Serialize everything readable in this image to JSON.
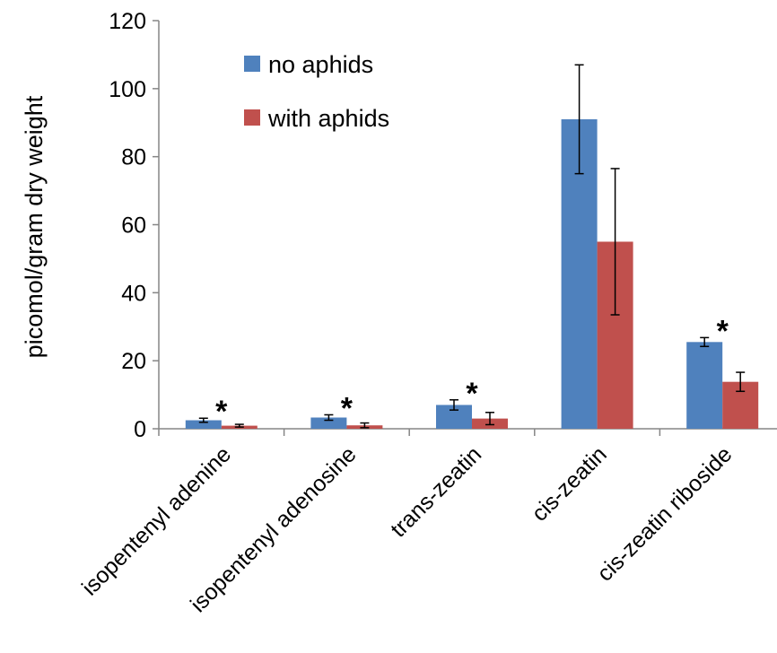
{
  "chart_data": {
    "type": "bar",
    "title": "",
    "xlabel": "",
    "ylabel": "picomol/gram dry weight",
    "ylim": [
      0,
      120
    ],
    "yticks": [
      "0",
      "20",
      "40",
      "60",
      "80",
      "100",
      "120"
    ],
    "categories": [
      "isopentenyl adenine",
      "isopentenyl adenosine",
      "trans-zeatin",
      "cis-zeatin",
      "cis-zeatin riboside"
    ],
    "series": [
      {
        "name": "no aphids",
        "color": "#4f81bd",
        "values": [
          2.5,
          3.3,
          7.0,
          91.0,
          25.5
        ],
        "errors": [
          0.6,
          0.8,
          1.5,
          16.0,
          1.3
        ]
      },
      {
        "name": "with aphids",
        "color": "#c0504d",
        "values": [
          0.9,
          1.0,
          3.0,
          55.0,
          13.8
        ],
        "errors": [
          0.4,
          0.7,
          1.8,
          21.5,
          2.8
        ]
      }
    ],
    "annotations": [
      "*",
      "*",
      "*",
      "",
      "*"
    ],
    "legend_position": "top-center",
    "grid": false
  }
}
